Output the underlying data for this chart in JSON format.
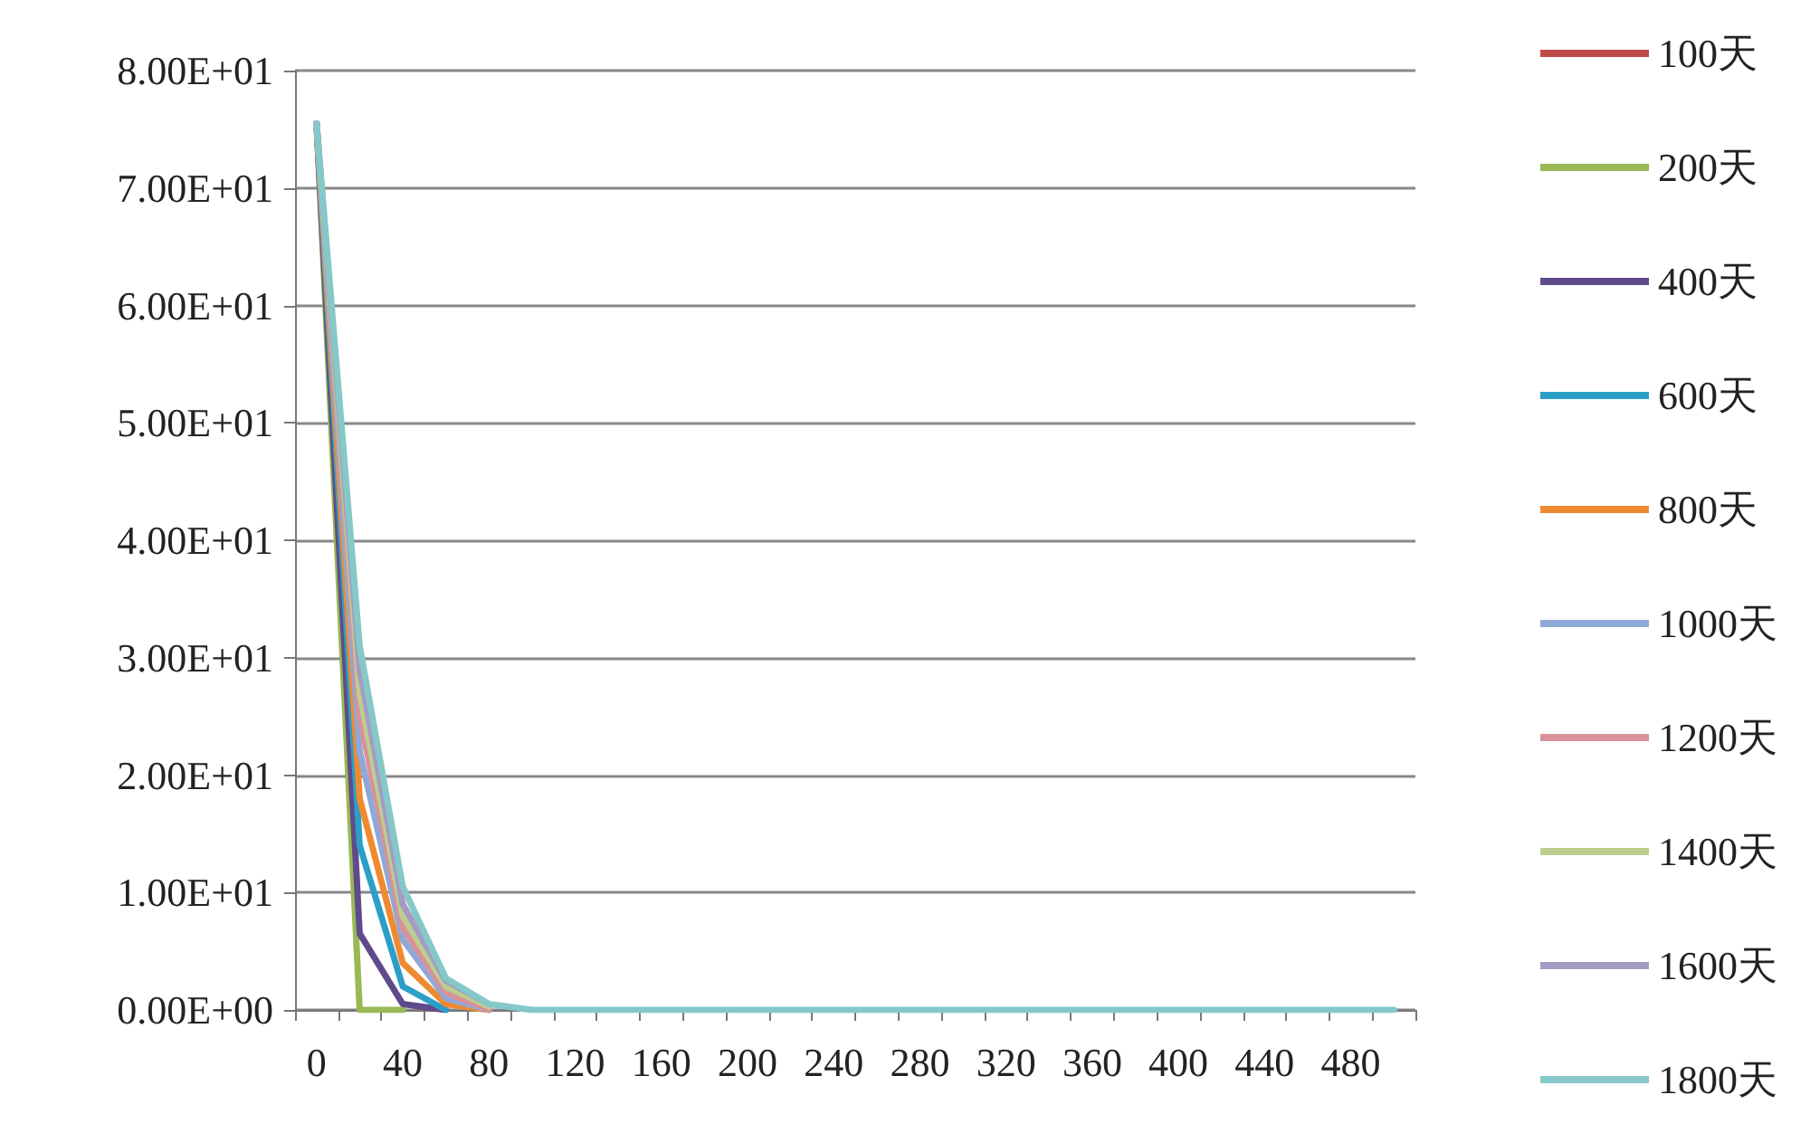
{
  "chart_data": {
    "type": "line",
    "categories": [
      "0",
      null,
      "40",
      null,
      "80",
      null,
      "120",
      null,
      "160",
      null,
      "200",
      null,
      "240",
      null,
      "280",
      null,
      "320",
      null,
      "360",
      null,
      "400",
      null,
      "440",
      null,
      "480",
      null
    ],
    "ylim": [
      0,
      80
    ],
    "yticks": [
      {
        "value": 0,
        "label": "0.00E+00"
      },
      {
        "value": 10,
        "label": "1.00E+01"
      },
      {
        "value": 20,
        "label": "2.00E+01"
      },
      {
        "value": 30,
        "label": "3.00E+01"
      },
      {
        "value": 40,
        "label": "4.00E+01"
      },
      {
        "value": 50,
        "label": "5.00E+01"
      },
      {
        "value": 60,
        "label": "6.00E+01"
      },
      {
        "value": 70,
        "label": "7.00E+01"
      },
      {
        "value": 80,
        "label": "8.00E+01"
      }
    ],
    "grid": "y",
    "legend": "right",
    "marker": "none",
    "line_style": "solid",
    "series": [
      {
        "name": "100天",
        "color": "#be4b48",
        "values": [
          null,
          null,
          null,
          null,
          null,
          null,
          null,
          null,
          null,
          null,
          null,
          null,
          null,
          null,
          null,
          null,
          null,
          null,
          null,
          null,
          null,
          null,
          null,
          null,
          null,
          null
        ]
      },
      {
        "name": "200天",
        "color": "#98b954",
        "values": [
          75.5,
          0,
          0,
          null,
          null,
          null,
          null,
          null,
          null,
          null,
          null,
          null,
          null,
          null,
          null,
          null,
          null,
          null,
          null,
          null,
          null,
          null,
          null,
          null,
          null,
          null
        ]
      },
      {
        "name": "400天",
        "color": "#5f4b8b",
        "values": [
          75.5,
          6.5,
          0.5,
          0,
          null,
          null,
          null,
          null,
          null,
          null,
          null,
          null,
          null,
          null,
          null,
          null,
          null,
          null,
          null,
          null,
          null,
          null,
          null,
          null,
          null,
          null
        ]
      },
      {
        "name": "600天",
        "color": "#2c9fc7",
        "values": [
          75.5,
          14,
          2,
          0,
          null,
          null,
          null,
          null,
          null,
          null,
          null,
          null,
          null,
          null,
          null,
          null,
          null,
          null,
          null,
          null,
          null,
          null,
          null,
          null,
          null,
          null
        ]
      },
      {
        "name": "800天",
        "color": "#f08a30",
        "values": [
          75.5,
          18,
          4,
          0.5,
          0,
          null,
          null,
          null,
          null,
          null,
          null,
          null,
          null,
          null,
          null,
          null,
          null,
          null,
          null,
          null,
          null,
          null,
          null,
          null,
          null,
          null
        ]
      },
      {
        "name": "1000天",
        "color": "#8ea9d8",
        "values": [
          75.5,
          22,
          6,
          1,
          0,
          null,
          null,
          null,
          null,
          null,
          null,
          null,
          null,
          null,
          null,
          null,
          null,
          null,
          null,
          null,
          null,
          null,
          null,
          null,
          null,
          null
        ]
      },
      {
        "name": "1200天",
        "color": "#d9919a",
        "values": [
          75.5,
          25,
          7,
          1.5,
          0,
          null,
          null,
          null,
          null,
          null,
          null,
          null,
          null,
          null,
          null,
          null,
          null,
          null,
          null,
          null,
          null,
          null,
          null,
          null,
          null,
          null
        ]
      },
      {
        "name": "1400天",
        "color": "#bccf8e",
        "values": [
          75.5,
          27,
          8,
          2,
          0.3,
          null,
          null,
          null,
          null,
          null,
          null,
          null,
          null,
          null,
          null,
          null,
          null,
          null,
          null,
          null,
          null,
          null,
          null,
          null,
          null,
          null
        ]
      },
      {
        "name": "1600天",
        "color": "#a49cc4",
        "values": [
          75.5,
          29,
          9,
          2.5,
          0.5,
          null,
          null,
          null,
          null,
          null,
          null,
          null,
          null,
          null,
          null,
          null,
          null,
          null,
          null,
          null,
          null,
          null,
          null,
          null,
          null,
          null
        ]
      },
      {
        "name": "1800天",
        "color": "#86c8c8",
        "values": [
          75.5,
          31,
          10.5,
          2.7,
          0.5,
          0,
          0,
          0,
          0,
          0,
          0,
          0,
          0,
          0,
          0,
          0,
          0,
          0,
          0,
          0,
          0,
          0,
          0,
          0,
          0,
          0
        ]
      }
    ]
  }
}
